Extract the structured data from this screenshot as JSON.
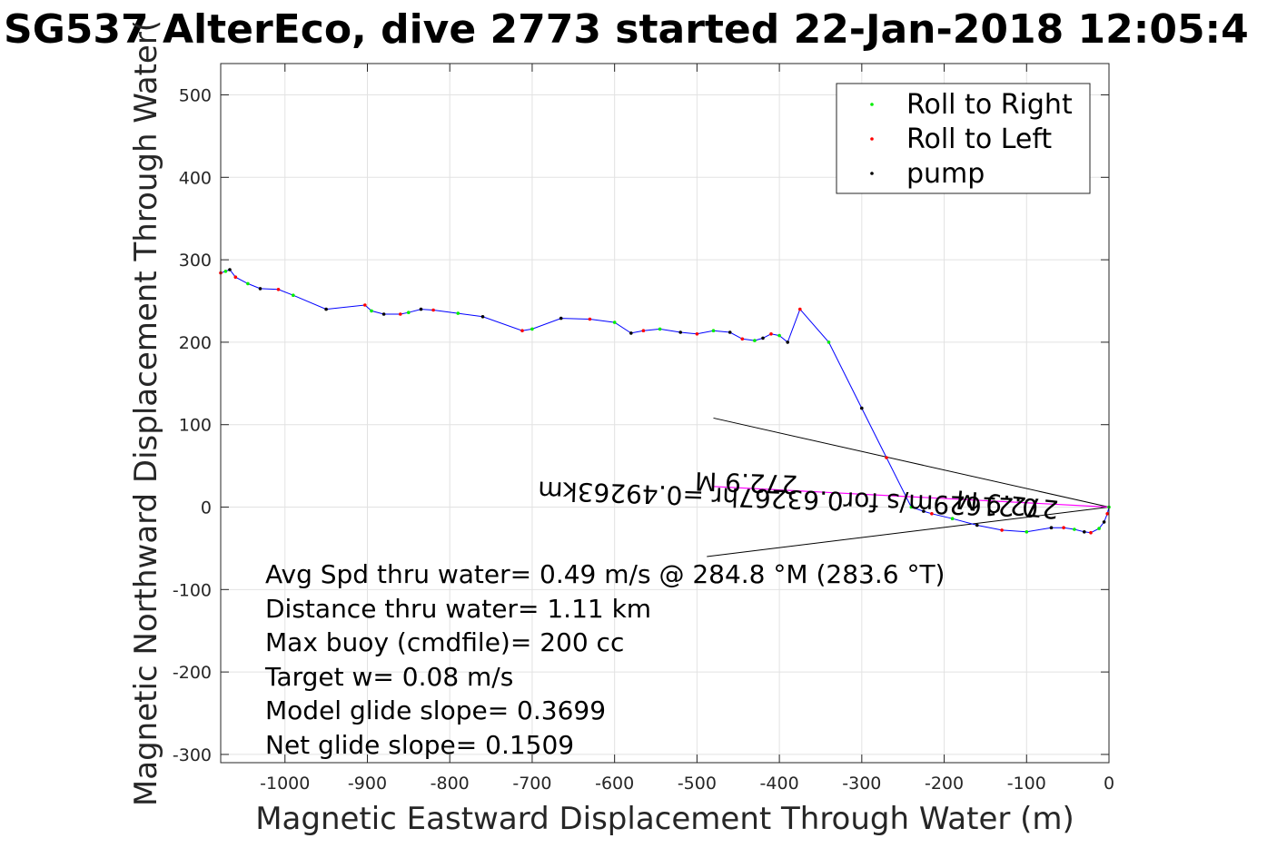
{
  "chart_data": {
    "type": "line",
    "title": "SG537 AlterEco, dive 2773 started 22-Jan-2018 12:05:4",
    "xlabel": "Magnetic Eastward Displacement Through Water (m)",
    "ylabel": "Magnetic Northward Displacement Through Water(",
    "xlim": [
      -1078,
      0
    ],
    "ylim": [
      -310,
      538
    ],
    "xticks": [
      -1000,
      -900,
      -800,
      -700,
      -600,
      -500,
      -400,
      -300,
      -200,
      -100,
      0
    ],
    "yticks": [
      500,
      400,
      300,
      200,
      100,
      0,
      -100,
      -200,
      -300
    ],
    "grid": true,
    "legend_position": "top-right",
    "legend": [
      {
        "label": "Roll to Right",
        "color": "#00ee00"
      },
      {
        "label": "Roll to Left",
        "color": "#ff0000"
      },
      {
        "label": "pump",
        "color": "#000000"
      }
    ],
    "track_color": "#0000ff",
    "track": {
      "x": [
        0,
        -2,
        -6,
        -12,
        -22,
        -30,
        -42,
        -55,
        -70,
        -100,
        -130,
        -160,
        -190,
        -215,
        -225,
        -240,
        -270,
        -300,
        -340,
        -375,
        -390,
        -400,
        -410,
        -420,
        -430,
        -445,
        -460,
        -480,
        -500,
        -520,
        -545,
        -565,
        -580,
        -600,
        -630,
        -665,
        -700,
        -712,
        -760,
        -790,
        -820,
        -835,
        -850,
        -860,
        -880,
        -895,
        -903,
        -950,
        -990,
        -1008,
        -1030,
        -1045,
        -1060,
        -1067,
        -1072,
        -1078
      ],
      "y": [
        0,
        -8,
        -18,
        -26,
        -31,
        -30,
        -27,
        -25,
        -25,
        -30,
        -28,
        -22,
        -14,
        -8,
        -5,
        0,
        60,
        120,
        200,
        240,
        200,
        208,
        210,
        205,
        202,
        204,
        212,
        214,
        210,
        212,
        216,
        214,
        211,
        224,
        228,
        229,
        216,
        214,
        231,
        235,
        239,
        240,
        236,
        234,
        234,
        238,
        245,
        240,
        257,
        264,
        265,
        271,
        279,
        288,
        286,
        284
      ]
    },
    "heading_line_color": "#ff00ff",
    "heading_line": {
      "x": [
        0,
        -480
      ],
      "y": [
        0,
        25
      ]
    },
    "wedge_lines": {
      "tip": [
        0,
        0
      ],
      "ends": [
        {
          "x": -480,
          "y": 108
        },
        {
          "x": -488,
          "y": -60
        }
      ]
    },
    "mirrored_labels": [
      "272.9 M",
      "0.21629m/s for0.63267hr =0.49263km",
      "272.9 M"
    ],
    "annotations": [
      "Avg Spd thru water=  0.49 m/s @ 284.8 °M (283.6 °T)",
      "Distance thru water=  1.11 km",
      "Max buoy (cmdfile)= 200 cc",
      "Target w= 0.08 m/s",
      "Model glide slope= 0.3699",
      "Net glide slope= 0.1509"
    ]
  }
}
